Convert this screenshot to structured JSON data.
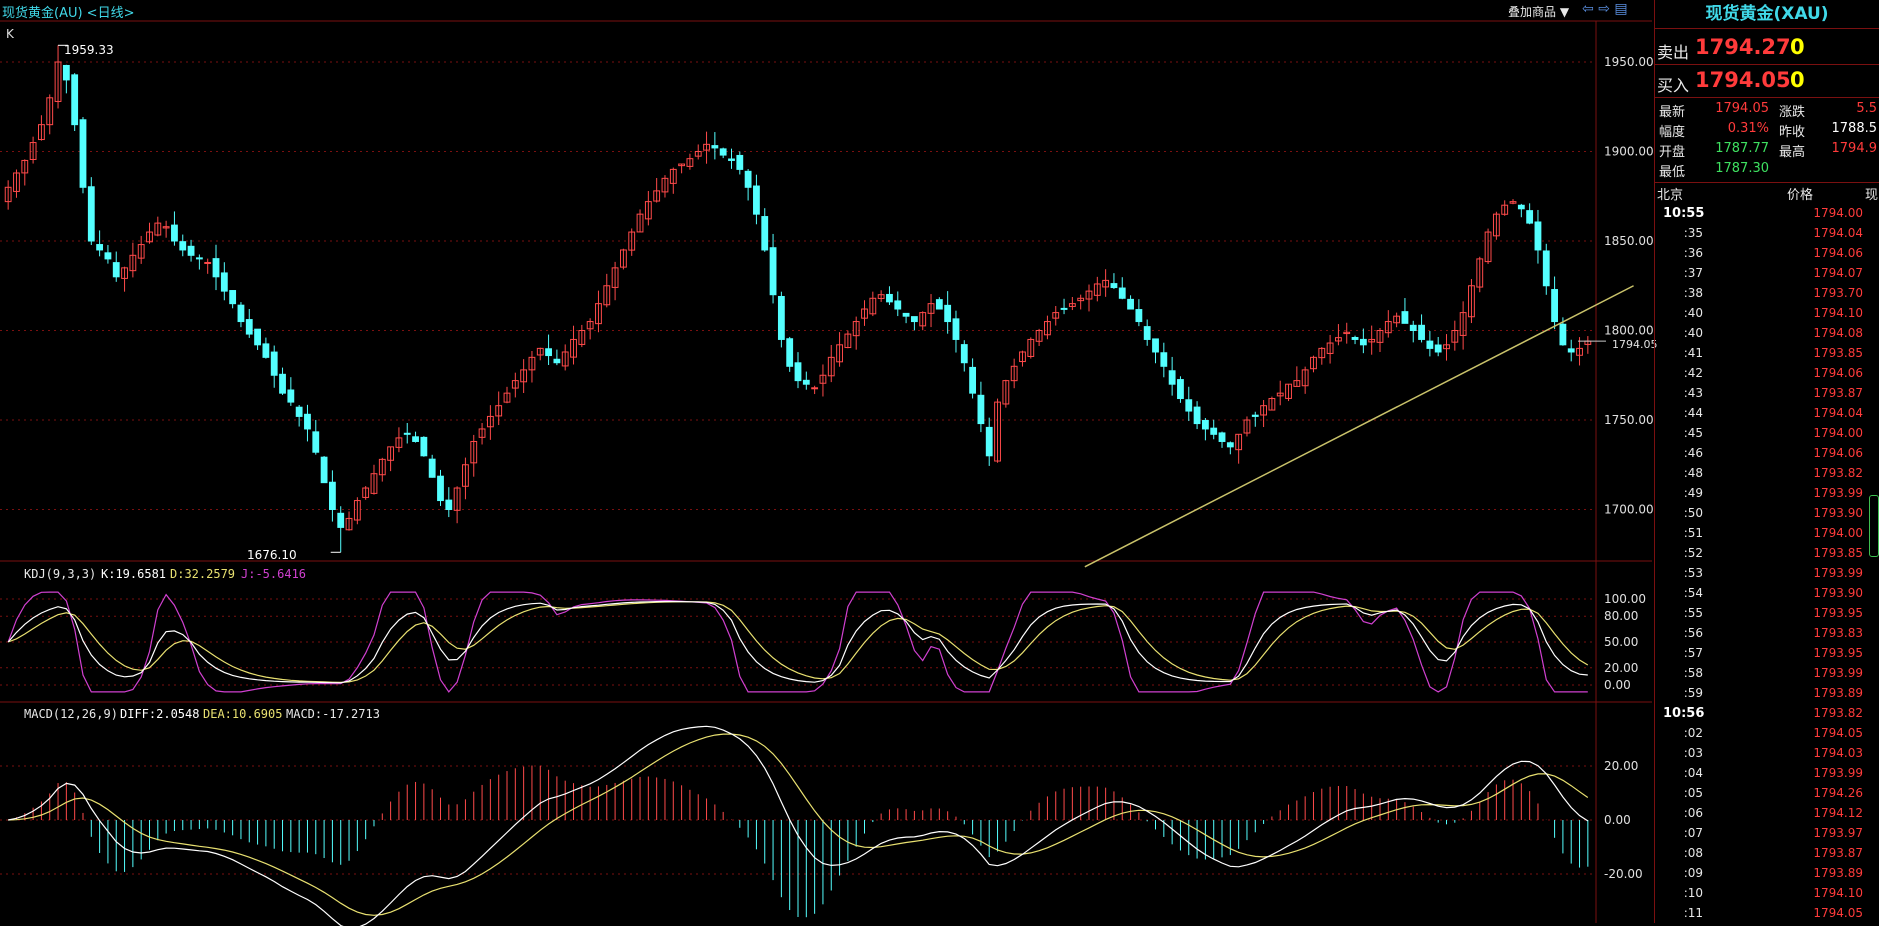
{
  "header": {
    "title": "现货黄金(AU) <日线>",
    "overlay_label": "叠加商品 ▼",
    "nav_icons": [
      "left-arrow-icon",
      "right-arrow-icon",
      "window-icon"
    ]
  },
  "colors": {
    "up": "#ff4a4a",
    "down": "#54ffff",
    "trend": "#c9c26a",
    "k": "#ffffff",
    "d": "#e8e070",
    "j": "#d040d0",
    "grid": "#7a1010"
  },
  "main": {
    "corner_label": "K",
    "high_label": "1959.33",
    "low_label": "1676.10",
    "current_label": "1794.05"
  },
  "kdj": {
    "label": "KDJ(9,3,3)",
    "k_text": "K:19.6581",
    "d_text": "D:32.2579",
    "j_text": "J:-5.6416"
  },
  "macd": {
    "label": "MACD(12,26,9)",
    "diff_text": "DIFF:2.0548",
    "dea_text": "DEA:10.6905",
    "macd_text": "MACD:-17.2713"
  },
  "panel": {
    "title": "现货黄金(XAU)",
    "sell_label": "卖出",
    "sell_price": "1794.27",
    "sell_vol": "0",
    "buy_label": "买入",
    "buy_price": "1794.05",
    "buy_vol": "0",
    "stats": [
      {
        "l1": "最新",
        "v1": "1794.05",
        "c1": "#ff3b3b",
        "l2": "涨跌",
        "v2": "5.5",
        "c2": "#ff3b3b"
      },
      {
        "l1": "幅度",
        "v1": "0.31%",
        "c1": "#ff3b3b",
        "l2": "昨收",
        "v2": "1788.5",
        "c2": "#ffffff"
      },
      {
        "l1": "开盘",
        "v1": "1787.77",
        "c1": "#3ee060",
        "l2": "最高",
        "v2": "1794.9",
        "c2": "#ff3b3b"
      },
      {
        "l1": "最低",
        "v1": "1787.30",
        "c1": "#3ee060",
        "l2": "",
        "v2": "",
        "c2": "#ffffff"
      }
    ],
    "tick_headers": {
      "time": "北京",
      "price": "价格",
      "vol": "现"
    },
    "ticks": [
      {
        "t": "10:55",
        "p": "1794.00",
        "major": true
      },
      {
        "t": ":35",
        "p": "1794.04"
      },
      {
        "t": ":36",
        "p": "1794.06"
      },
      {
        "t": ":37",
        "p": "1794.07"
      },
      {
        "t": ":38",
        "p": "1793.70"
      },
      {
        "t": ":40",
        "p": "1794.10"
      },
      {
        "t": ":40",
        "p": "1794.08"
      },
      {
        "t": ":41",
        "p": "1793.85"
      },
      {
        "t": ":42",
        "p": "1794.06"
      },
      {
        "t": ":43",
        "p": "1793.87"
      },
      {
        "t": ":44",
        "p": "1794.04"
      },
      {
        "t": ":45",
        "p": "1794.00"
      },
      {
        "t": ":46",
        "p": "1794.06"
      },
      {
        "t": ":48",
        "p": "1793.82"
      },
      {
        "t": ":49",
        "p": "1793.99"
      },
      {
        "t": ":50",
        "p": "1793.90"
      },
      {
        "t": ":51",
        "p": "1794.00"
      },
      {
        "t": ":52",
        "p": "1793.85"
      },
      {
        "t": ":53",
        "p": "1793.99"
      },
      {
        "t": ":54",
        "p": "1793.90"
      },
      {
        "t": ":55",
        "p": "1793.95"
      },
      {
        "t": ":56",
        "p": "1793.83"
      },
      {
        "t": ":57",
        "p": "1793.95"
      },
      {
        "t": ":58",
        "p": "1793.99"
      },
      {
        "t": ":59",
        "p": "1793.89"
      },
      {
        "t": "10:56",
        "p": "1793.82",
        "major": true
      },
      {
        "t": ":02",
        "p": "1794.05"
      },
      {
        "t": ":03",
        "p": "1794.03"
      },
      {
        "t": ":04",
        "p": "1793.99"
      },
      {
        "t": ":05",
        "p": "1794.26"
      },
      {
        "t": ":06",
        "p": "1794.12"
      },
      {
        "t": ":07",
        "p": "1793.97"
      },
      {
        "t": ":08",
        "p": "1793.87"
      },
      {
        "t": ":09",
        "p": "1793.89"
      },
      {
        "t": ":10",
        "p": "1794.10"
      },
      {
        "t": ":11",
        "p": "1794.05"
      }
    ]
  },
  "chart_data": {
    "type": "candlestick",
    "title": "现货黄金(AU) <日线>",
    "ylim": [
      1676.1,
      1959.33
    ],
    "yticks": [
      1950,
      1900,
      1850,
      1800,
      1750,
      1700
    ],
    "high": 1959.33,
    "low": 1676.1,
    "last": 1794.05,
    "trendline": {
      "from_index": 130,
      "from_price": 1668,
      "to_index": 196,
      "to_price": 1825
    },
    "closes": [
      1880,
      1888,
      1895,
      1905,
      1915,
      1930,
      1950,
      1940,
      1915,
      1880,
      1850,
      1845,
      1840,
      1830,
      1835,
      1842,
      1848,
      1855,
      1860,
      1858,
      1850,
      1845,
      1842,
      1840,
      1838,
      1830,
      1822,
      1815,
      1805,
      1798,
      1792,
      1785,
      1775,
      1765,
      1760,
      1752,
      1745,
      1732,
      1715,
      1700,
      1690,
      1695,
      1705,
      1712,
      1720,
      1728,
      1735,
      1740,
      1742,
      1738,
      1730,
      1718,
      1705,
      1700,
      1712,
      1725,
      1738,
      1745,
      1752,
      1758,
      1765,
      1772,
      1778,
      1785,
      1790,
      1786,
      1782,
      1788,
      1795,
      1800,
      1805,
      1815,
      1825,
      1835,
      1845,
      1855,
      1865,
      1872,
      1878,
      1885,
      1890,
      1893,
      1896,
      1900,
      1904,
      1902,
      1898,
      1895,
      1890,
      1880,
      1865,
      1845,
      1820,
      1795,
      1780,
      1772,
      1770,
      1768,
      1775,
      1785,
      1792,
      1798,
      1805,
      1812,
      1818,
      1820,
      1816,
      1812,
      1808,
      1805,
      1810,
      1815,
      1812,
      1805,
      1795,
      1782,
      1765,
      1748,
      1730,
      1760,
      1772,
      1780,
      1788,
      1795,
      1800,
      1805,
      1810,
      1812,
      1815,
      1818,
      1822,
      1826,
      1828,
      1824,
      1818,
      1812,
      1805,
      1795,
      1788,
      1780,
      1770,
      1762,
      1755,
      1748,
      1745,
      1742,
      1738,
      1735,
      1742,
      1750,
      1752,
      1758,
      1762,
      1765,
      1770,
      1772,
      1778,
      1785,
      1790,
      1793,
      1796,
      1799,
      1795,
      1792,
      1795,
      1800,
      1805,
      1808,
      1804,
      1800,
      1795,
      1790,
      1788,
      1792,
      1800,
      1810,
      1825,
      1840,
      1855,
      1865,
      1870,
      1872,
      1868,
      1860,
      1845,
      1825,
      1805,
      1792,
      1788,
      1790,
      1794.05
    ],
    "kdj": {
      "K": 19.6581,
      "D": 32.2579,
      "J": -5.6416,
      "yticks": [
        100,
        80,
        50,
        20,
        0
      ]
    },
    "macd": {
      "DIFF": 2.0548,
      "DEA": 10.6905,
      "MACD": -17.2713,
      "yticks": [
        20,
        0,
        -20
      ]
    }
  }
}
